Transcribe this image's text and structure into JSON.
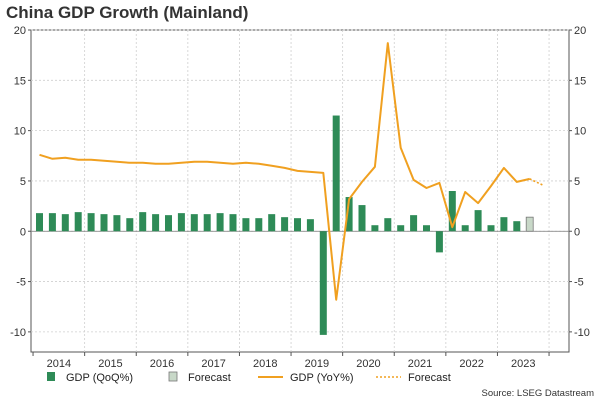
{
  "chart_data": {
    "type": "bar+line",
    "title": "China GDP Growth (Mainland)",
    "source": "Source: LSEG Datastream",
    "ylim": [
      -12,
      20
    ],
    "yticks": [
      20,
      15,
      10,
      5,
      0,
      -5,
      -10
    ],
    "year_labels": [
      "2014",
      "2015",
      "2016",
      "2017",
      "2018",
      "2019",
      "2020",
      "2021",
      "2022",
      "2023"
    ],
    "quarters": [
      "2014Q1",
      "2014Q2",
      "2014Q3",
      "2014Q4",
      "2015Q1",
      "2015Q2",
      "2015Q3",
      "2015Q4",
      "2016Q1",
      "2016Q2",
      "2016Q3",
      "2016Q4",
      "2017Q1",
      "2017Q2",
      "2017Q3",
      "2017Q4",
      "2018Q1",
      "2018Q2",
      "2018Q3",
      "2018Q4",
      "2019Q1",
      "2019Q2",
      "2019Q3",
      "2019Q4",
      "2020Q1",
      "2020Q2",
      "2020Q3",
      "2020Q4",
      "2021Q1",
      "2021Q2",
      "2021Q3",
      "2021Q4",
      "2022Q1",
      "2022Q2",
      "2022Q3",
      "2022Q4",
      "2023Q1",
      "2023Q2",
      "2023Q3",
      "2023Q4"
    ],
    "series": [
      {
        "name": "GDP (QoQ%)",
        "type": "bar",
        "color": "#2e8b57",
        "values": [
          1.8,
          1.8,
          1.7,
          1.9,
          1.8,
          1.7,
          1.6,
          1.3,
          1.9,
          1.7,
          1.6,
          1.8,
          1.7,
          1.7,
          1.8,
          1.7,
          1.3,
          1.3,
          1.7,
          1.4,
          1.3,
          1.2,
          -10.3,
          11.5,
          3.4,
          2.6,
          0.6,
          1.3,
          0.6,
          1.6,
          0.6,
          -2.1,
          4.0,
          0.6,
          2.1,
          0.6,
          1.4,
          1.0,
          null,
          null
        ]
      },
      {
        "name": "Forecast",
        "type": "bar",
        "color": "#c8d8c8",
        "values": [
          null,
          null,
          null,
          null,
          null,
          null,
          null,
          null,
          null,
          null,
          null,
          null,
          null,
          null,
          null,
          null,
          null,
          null,
          null,
          null,
          null,
          null,
          null,
          null,
          null,
          null,
          null,
          null,
          null,
          null,
          null,
          null,
          null,
          null,
          null,
          null,
          null,
          null,
          1.4,
          null
        ]
      },
      {
        "name": "GDP (YoY%)",
        "type": "line",
        "color": "#f0a020",
        "values": [
          7.6,
          7.2,
          7.3,
          7.1,
          7.1,
          7.0,
          6.9,
          6.8,
          6.8,
          6.7,
          6.7,
          6.8,
          6.9,
          6.9,
          6.8,
          6.7,
          6.8,
          6.7,
          6.5,
          6.3,
          6.0,
          5.9,
          5.8,
          -6.8,
          3.2,
          4.9,
          6.4,
          18.7,
          8.3,
          5.1,
          4.3,
          4.8,
          0.4,
          3.9,
          2.8,
          4.5,
          6.3,
          4.9,
          5.2,
          null
        ]
      },
      {
        "name": "Forecast",
        "type": "line",
        "style": "dotted",
        "color": "#f0a020",
        "values": [
          null,
          null,
          null,
          null,
          null,
          null,
          null,
          null,
          null,
          null,
          null,
          null,
          null,
          null,
          null,
          null,
          null,
          null,
          null,
          null,
          null,
          null,
          null,
          null,
          null,
          null,
          null,
          null,
          null,
          null,
          null,
          null,
          null,
          null,
          null,
          null,
          null,
          null,
          5.2,
          4.6
        ]
      }
    ]
  }
}
